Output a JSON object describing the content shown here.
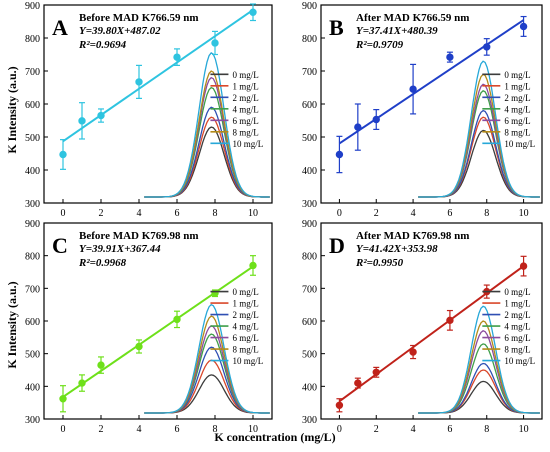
{
  "figure": {
    "ylabel": "K Intensity (a.u.)",
    "xlabel": "K concentration (mg/L)"
  },
  "legend": [
    "0 mg/L",
    "1 mg/L",
    "2 mg/L",
    "4 mg/L",
    "6 mg/L",
    "8 mg/L",
    "10 mg/L"
  ],
  "legend_colors": [
    "#3c3c3c",
    "#d9482b",
    "#2f4fb3",
    "#3f9e4a",
    "#8b4c9e",
    "#b38b1a",
    "#27a8d8"
  ],
  "chart_data": [
    {
      "type": "scatter",
      "panel_letter": "A",
      "title": "Before MAD K766.59 nm",
      "equation": "Y=39.80X+487.02",
      "r2": "R²=0.9694",
      "slope": 39.8,
      "intercept": 487.02,
      "color": "#2ec4e0",
      "x": [
        0,
        1,
        2,
        4,
        6,
        8,
        10
      ],
      "y": [
        447,
        549,
        565,
        667,
        742,
        785,
        878
      ],
      "err": [
        45,
        55,
        20,
        50,
        25,
        35,
        25
      ],
      "ylim": [
        300,
        900
      ],
      "yticks": [
        300,
        400,
        500,
        600,
        700,
        800,
        900
      ],
      "xticks": [
        0,
        2,
        4,
        6,
        8,
        10
      ],
      "xlim": [
        -1,
        11
      ],
      "peak_maxima": [
        530,
        560,
        590,
        650,
        680,
        700,
        755
      ]
    },
    {
      "type": "scatter",
      "panel_letter": "B",
      "title": "After MAD K766.59 nm",
      "equation": "Y=37.41X+480.39",
      "r2": "R²=0.9709",
      "slope": 37.41,
      "intercept": 480.39,
      "color": "#1f3fc8",
      "x": [
        0,
        1,
        2,
        4,
        6,
        8,
        10
      ],
      "y": [
        447,
        530,
        553,
        645,
        742,
        773,
        835
      ],
      "err": [
        55,
        70,
        30,
        75,
        15,
        25,
        30
      ],
      "ylim": [
        300,
        900
      ],
      "yticks": [
        300,
        400,
        500,
        600,
        700,
        800,
        900
      ],
      "xticks": [
        0,
        2,
        4,
        6,
        8,
        10
      ],
      "xlim": [
        -1,
        11
      ],
      "peak_maxima": [
        520,
        560,
        580,
        640,
        660,
        690,
        730
      ]
    },
    {
      "type": "scatter",
      "panel_letter": "C",
      "title": "Before MAD K769.98 nm",
      "equation": "Y=39.91X+367.44",
      "r2": "R²=0.9968",
      "slope": 39.91,
      "intercept": 367.44,
      "color": "#6ee01a",
      "x": [
        0,
        1,
        2,
        4,
        6,
        8,
        10
      ],
      "y": [
        362,
        410,
        465,
        522,
        605,
        685,
        770
      ],
      "err": [
        40,
        25,
        25,
        20,
        25,
        10,
        30
      ],
      "ylim": [
        300,
        900
      ],
      "yticks": [
        300,
        400,
        500,
        600,
        700,
        800,
        900
      ],
      "xticks": [
        0,
        2,
        4,
        6,
        8,
        10
      ],
      "xlim": [
        -1,
        11
      ],
      "peak_maxima": [
        435,
        480,
        520,
        560,
        585,
        615,
        650
      ]
    },
    {
      "type": "scatter",
      "panel_letter": "D",
      "title": "After MAD K769.98 nm",
      "equation": "Y=41.42X+353.98",
      "r2": "R²=0.9950",
      "slope": 41.42,
      "intercept": 353.98,
      "color": "#c0221a",
      "x": [
        0,
        1,
        2,
        4,
        6,
        8,
        10
      ],
      "y": [
        342,
        410,
        443,
        505,
        602,
        690,
        768
      ],
      "err": [
        20,
        15,
        15,
        20,
        30,
        20,
        30
      ],
      "ylim": [
        300,
        900
      ],
      "yticks": [
        300,
        400,
        500,
        600,
        700,
        800,
        900
      ],
      "xticks": [
        0,
        2,
        4,
        6,
        8,
        10
      ],
      "xlim": [
        -1,
        11
      ],
      "peak_maxima": [
        415,
        450,
        470,
        530,
        570,
        600,
        645
      ]
    }
  ]
}
